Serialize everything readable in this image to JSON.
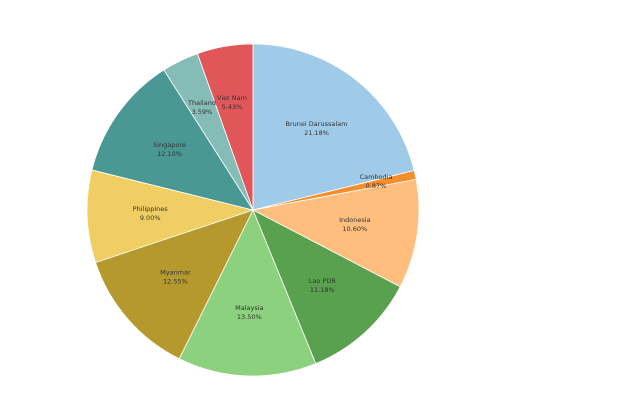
{
  "chart_data": {
    "type": "pie",
    "title": "",
    "start_angle_deg": 0,
    "direction": "clockwise",
    "slices": [
      {
        "label": "Brunei Darussalam",
        "value": 21.18,
        "value_label": "21.18%",
        "color": "#A0CBE8"
      },
      {
        "label": "Cambodia",
        "value": 0.87,
        "value_label": "0.87%",
        "color": "#F28E2B"
      },
      {
        "label": "Indonesia",
        "value": 10.6,
        "value_label": "10.60%",
        "color": "#FFBE7D"
      },
      {
        "label": "Lao PDR",
        "value": 11.18,
        "value_label": "11.18%",
        "color": "#59A14F"
      },
      {
        "label": "Malaysia",
        "value": 13.5,
        "value_label": "13.50%",
        "color": "#8CD17D"
      },
      {
        "label": "Myanmar",
        "value": 12.55,
        "value_label": "12.55%",
        "color": "#B6992D"
      },
      {
        "label": "Philippines",
        "value": 9.0,
        "value_label": "9.00%",
        "color": "#F1CE63"
      },
      {
        "label": "Singapore",
        "value": 12.1,
        "value_label": "12.10%",
        "color": "#499894"
      },
      {
        "label": "Thailand",
        "value": 3.59,
        "value_label": "3.59%",
        "color": "#86BCB6"
      },
      {
        "label": "Viet Nam",
        "value": 5.43,
        "value_label": "5.43%",
        "color": "#E15759"
      }
    ]
  }
}
